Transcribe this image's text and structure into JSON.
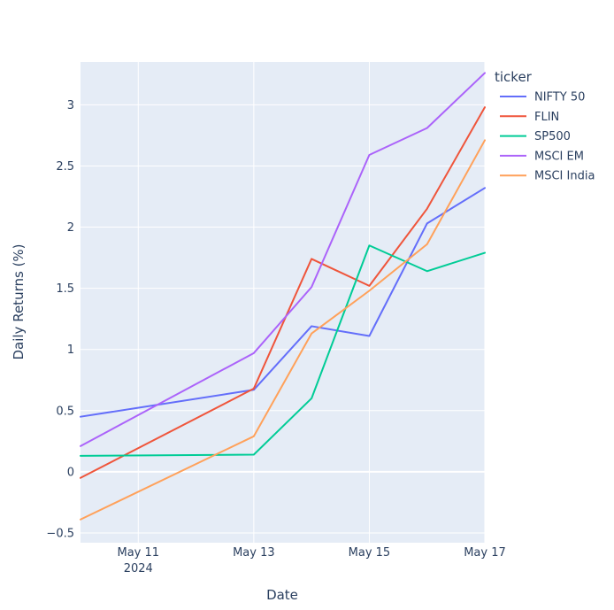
{
  "chart_data": {
    "type": "line",
    "xlabel": "Date",
    "ylabel": "Daily Returns (%)",
    "x": [
      "2024-05-10",
      "2024-05-13",
      "2024-05-14",
      "2024-05-15",
      "2024-05-16",
      "2024-05-17"
    ],
    "x_ticks": [
      {
        "value": "2024-05-11",
        "label": "May 11",
        "sub": "2024"
      },
      {
        "value": "2024-05-13",
        "label": "May 13",
        "sub": ""
      },
      {
        "value": "2024-05-15",
        "label": "May 15",
        "sub": ""
      },
      {
        "value": "2024-05-17",
        "label": "May 17",
        "sub": ""
      }
    ],
    "xlim": [
      "2024-05-10",
      "2024-05-17"
    ],
    "y_ticks": [
      -0.5,
      0,
      0.5,
      1,
      1.5,
      2,
      2.5,
      3
    ],
    "y_tick_labels": [
      "−0.5",
      "0",
      "0.5",
      "1",
      "1.5",
      "2",
      "2.5",
      "3"
    ],
    "ylim": [
      -0.58,
      3.35
    ],
    "grid": true,
    "legend_title": "ticker",
    "legend_position": "right",
    "plot_background": "#e5ecf6",
    "series": [
      {
        "name": "NIFTY 50",
        "color": "#636efa",
        "values": [
          0.45,
          0.67,
          1.19,
          1.11,
          2.03,
          2.32
        ]
      },
      {
        "name": "FLIN",
        "color": "#ef553b",
        "values": [
          -0.05,
          0.68,
          1.74,
          1.52,
          2.15,
          2.98
        ]
      },
      {
        "name": "SP500",
        "color": "#00cc96",
        "values": [
          0.13,
          0.14,
          0.6,
          1.85,
          1.64,
          1.79
        ]
      },
      {
        "name": "MSCI EM",
        "color": "#ab63fa",
        "values": [
          0.21,
          0.97,
          1.51,
          2.59,
          2.81,
          3.26
        ]
      },
      {
        "name": "MSCI India",
        "color": "#ffa15a",
        "values": [
          -0.39,
          0.29,
          1.13,
          1.48,
          1.86,
          2.71
        ]
      }
    ]
  }
}
